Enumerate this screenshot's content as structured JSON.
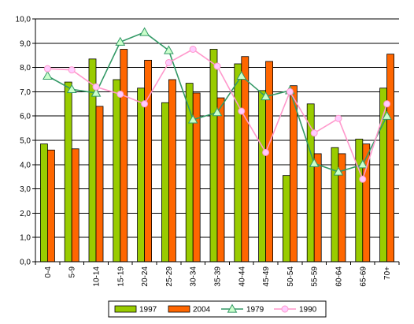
{
  "chart_data": {
    "type": "bar",
    "categories": [
      "0-4",
      "5-9",
      "10-14",
      "15-19",
      "20-24",
      "25-29",
      "30-34",
      "35-39",
      "40-44",
      "45-49",
      "50-54",
      "55-59",
      "60-64",
      "65-69",
      "70+"
    ],
    "ylim": [
      0,
      10
    ],
    "yticks": [
      "0,0",
      "1,0",
      "2,0",
      "3,0",
      "4,0",
      "5,0",
      "6,0",
      "7,0",
      "8,0",
      "9,0",
      "10,0"
    ],
    "grid": true,
    "legend_position": "bottom",
    "bar_series": [
      {
        "name": "1997",
        "color": "#99cc00",
        "values": [
          4.85,
          7.4,
          8.35,
          7.5,
          7.15,
          6.55,
          7.35,
          8.75,
          8.15,
          7.05,
          3.55,
          6.5,
          4.7,
          5.05,
          7.15
        ]
      },
      {
        "name": "2004",
        "color": "#ff6600",
        "values": [
          4.6,
          4.65,
          6.4,
          8.75,
          8.3,
          7.5,
          6.95,
          6.75,
          8.45,
          8.25,
          7.25,
          4.45,
          4.45,
          4.85,
          8.55
        ]
      }
    ],
    "line_series": [
      {
        "name": "1979",
        "color": "#339966",
        "marker": "triangle",
        "values": [
          7.65,
          7.1,
          6.95,
          9.05,
          9.45,
          8.7,
          5.85,
          6.15,
          7.65,
          6.8,
          7.05,
          4.05,
          3.7,
          4.0,
          6.0
        ]
      },
      {
        "name": "1990",
        "color": "#ff99cc",
        "marker": "circle",
        "values": [
          7.95,
          7.9,
          7.2,
          6.9,
          6.5,
          8.2,
          8.75,
          8.05,
          6.2,
          4.5,
          7.0,
          5.3,
          5.9,
          3.4,
          6.5
        ]
      }
    ],
    "legend": [
      "1997",
      "2004",
      "1979",
      "1990"
    ]
  }
}
